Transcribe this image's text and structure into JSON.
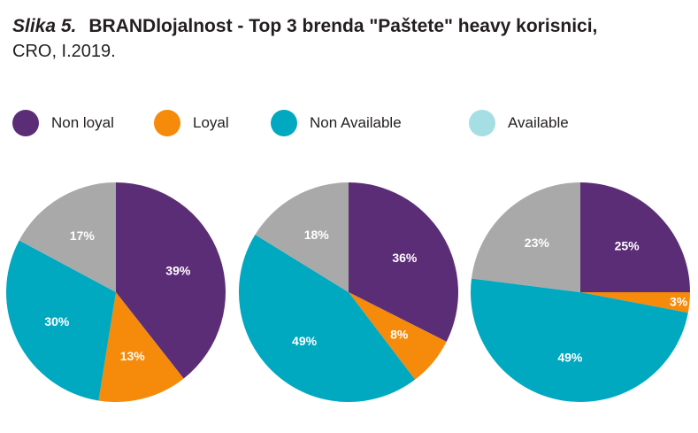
{
  "title": {
    "figure": "Slika 5.",
    "main": "BRANDlojalnost - Top 3 brenda \"Paštete\" heavy korisnici,",
    "sub": "CRO, I.2019."
  },
  "colors": {
    "Non loyal": "#5c2d77",
    "Loyal": "#f58a0b",
    "Non Available": "#00a8c0",
    "Available": "#a9a9a9"
  },
  "legend": [
    {
      "label": "Non loyal",
      "color": "#5c2d77"
    },
    {
      "label": "Loyal",
      "color": "#f58a0b"
    },
    {
      "label": "Non Available",
      "color": "#00a8c0"
    },
    {
      "label": "Available",
      "color": "#a5dfe4"
    }
  ],
  "chart_data": [
    {
      "type": "pie",
      "slices": [
        {
          "label": "Non loyal",
          "value": 39,
          "text": "39%"
        },
        {
          "label": "Loyal",
          "value": 13,
          "text": "13%"
        },
        {
          "label": "Non Available",
          "value": 30,
          "text": "30%"
        },
        {
          "label": "Available",
          "value": 17,
          "text": "17%"
        }
      ]
    },
    {
      "type": "pie",
      "slices": [
        {
          "label": "Non loyal",
          "value": 36,
          "text": "36%"
        },
        {
          "label": "Loyal",
          "value": 8,
          "text": "8%"
        },
        {
          "label": "Non Available",
          "value": 49,
          "text": "49%"
        },
        {
          "label": "Available",
          "value": 18,
          "text": "18%"
        }
      ]
    },
    {
      "type": "pie",
      "slices": [
        {
          "label": "Non loyal",
          "value": 25,
          "text": "25%"
        },
        {
          "label": "Loyal",
          "value": 3,
          "text": "3%"
        },
        {
          "label": "Non Available",
          "value": 49,
          "text": "49%"
        },
        {
          "label": "Available",
          "value": 23,
          "text": "23%"
        }
      ]
    }
  ]
}
